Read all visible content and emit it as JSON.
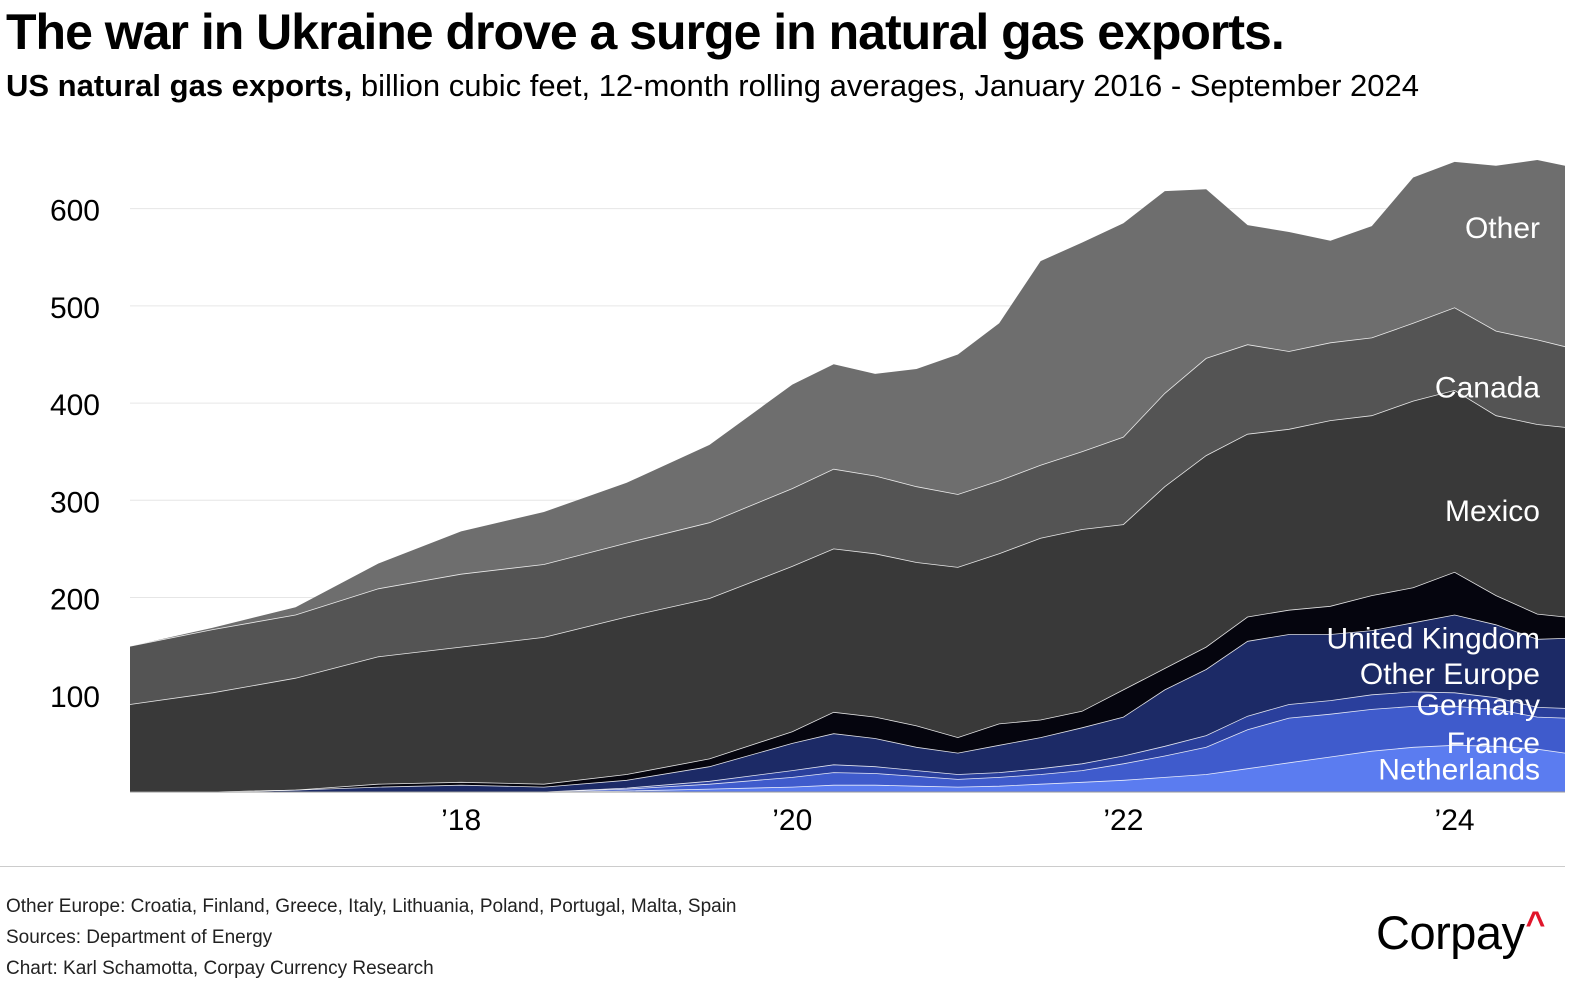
{
  "title": "The war in Ukraine drove a surge in natural gas exports.",
  "subtitle_bold": "US natural gas exports,",
  "subtitle_rest": " billion cubic feet, 12-month rolling averages, January 2016 - September 2024",
  "footer": {
    "note": "Other Europe: Croatia, Finland, Greece, Italy, Lithuania, Poland, Portugal, Malta, Spain",
    "sources": "Sources: Department of Energy",
    "credit": "Chart: Karl Schamotta, Corpay Currency Research",
    "logo": "Corpay",
    "logo_mark": "^"
  },
  "colors": {
    "Netherlands": "#5b7cf0",
    "France": "#3f5bcc",
    "Germany": "#2a3f9c",
    "Other Europe": "#1c2a66",
    "United Kingdom": "#05050e",
    "Mexico": "#393939",
    "Canada": "#545454",
    "Other": "#6e6e6e",
    "grid": "#e6e6e6",
    "boundary": "#ffffff"
  },
  "chart_data": {
    "type": "area",
    "stacked": true,
    "title": "The war in Ukraine drove a surge in natural gas exports.",
    "ylabel": "billion cubic feet",
    "ylim": [
      0,
      650
    ],
    "xlim": [
      2016.0,
      2024.667
    ],
    "yticks": [
      100,
      200,
      300,
      400,
      500,
      600
    ],
    "xticks": [
      {
        "value": 2018,
        "label": "’18"
      },
      {
        "value": 2020,
        "label": "’20"
      },
      {
        "value": 2022,
        "label": "’22"
      },
      {
        "value": 2024,
        "label": "’24"
      }
    ],
    "grid": true,
    "x": [
      2016.0,
      2016.5,
      2017.0,
      2017.5,
      2018.0,
      2018.5,
      2019.0,
      2019.5,
      2020.0,
      2020.25,
      2020.5,
      2020.75,
      2021.0,
      2021.25,
      2021.5,
      2021.75,
      2022.0,
      2022.25,
      2022.5,
      2022.75,
      2023.0,
      2023.25,
      2023.5,
      2023.75,
      2024.0,
      2024.25,
      2024.5,
      2024.667
    ],
    "series": [
      {
        "name": "Netherlands",
        "label": "Netherlands",
        "values": [
          0,
          0,
          0,
          0,
          0,
          0,
          1,
          3,
          5,
          7,
          7,
          6,
          5,
          6,
          8,
          10,
          12,
          15,
          18,
          24,
          30,
          36,
          42,
          46,
          48,
          47,
          44,
          40
        ]
      },
      {
        "name": "France",
        "label": "France",
        "values": [
          0,
          0,
          0,
          0,
          0,
          0,
          2,
          5,
          10,
          13,
          12,
          10,
          8,
          9,
          10,
          12,
          17,
          22,
          28,
          40,
          46,
          44,
          43,
          42,
          40,
          38,
          33,
          36
        ]
      },
      {
        "name": "Germany",
        "label": "Germany",
        "values": [
          0,
          0,
          0,
          0,
          0,
          0,
          1,
          3,
          7,
          8,
          7,
          6,
          5,
          5,
          6,
          7,
          8,
          10,
          12,
          14,
          14,
          14,
          15,
          15,
          14,
          12,
          10,
          10
        ]
      },
      {
        "name": "Other Europe",
        "label": "Other Europe",
        "values": [
          0,
          0,
          2,
          5,
          7,
          5,
          8,
          15,
          28,
          32,
          29,
          24,
          22,
          28,
          32,
          37,
          40,
          58,
          68,
          77,
          72,
          68,
          66,
          71,
          80,
          75,
          70,
          72
        ]
      },
      {
        "name": "United Kingdom",
        "label": "United Kingdom",
        "values": [
          0,
          0,
          0,
          3,
          3,
          3,
          6,
          8,
          12,
          22,
          22,
          22,
          16,
          22,
          18,
          17,
          28,
          22,
          23,
          25,
          25,
          29,
          36,
          36,
          44,
          30,
          26,
          22
        ]
      },
      {
        "name": "Mexico",
        "label": "Mexico",
        "values": [
          90,
          102,
          115,
          131,
          139,
          151,
          162,
          165,
          170,
          168,
          168,
          168,
          175,
          175,
          187,
          187,
          170,
          187,
          197,
          188,
          186,
          191,
          185,
          192,
          187,
          185,
          195,
          195
        ]
      },
      {
        "name": "Canada",
        "label": "Canada",
        "values": [
          60,
          65,
          65,
          70,
          75,
          75,
          76,
          78,
          80,
          82,
          80,
          78,
          75,
          75,
          75,
          80,
          90,
          96,
          100,
          92,
          80,
          80,
          80,
          80,
          85,
          87,
          87,
          83
        ]
      },
      {
        "name": "Other",
        "label": "Other",
        "values": [
          0,
          2,
          8,
          26,
          44,
          54,
          62,
          80,
          107,
          108,
          105,
          121,
          144,
          162,
          210,
          215,
          220,
          208,
          174,
          123,
          123,
          105,
          115,
          150,
          150,
          170,
          185,
          186
        ]
      }
    ]
  }
}
